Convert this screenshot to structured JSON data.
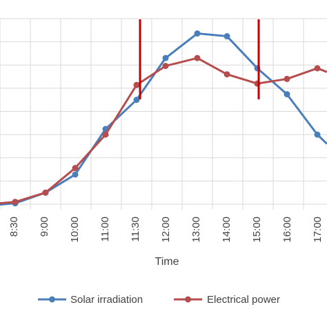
{
  "chart_data": {
    "type": "line",
    "x": [
      "8:30",
      "9:00",
      "10:00",
      "11:00",
      "11:30",
      "12:00",
      "13:00",
      "14:00",
      "15:00",
      "16:00",
      "17:00"
    ],
    "series": [
      {
        "name": "Solar irradiation",
        "color": "#4a7ebb",
        "values": [
          2,
          25,
          64,
          162,
          225,
          315,
          368,
          362,
          293,
          237,
          150
        ]
      },
      {
        "name": "Electrical power",
        "color": "#b54c4d",
        "values": [
          5,
          25,
          78,
          150,
          257,
          298,
          315,
          280,
          260,
          270,
          293
        ]
      }
    ],
    "xlabel": "Time",
    "ylabel": "",
    "title": "",
    "grid": true,
    "legend_position": "bottom",
    "markers": {
      "color": "#c00000",
      "at": [
        "11:30",
        "15:00"
      ]
    }
  }
}
